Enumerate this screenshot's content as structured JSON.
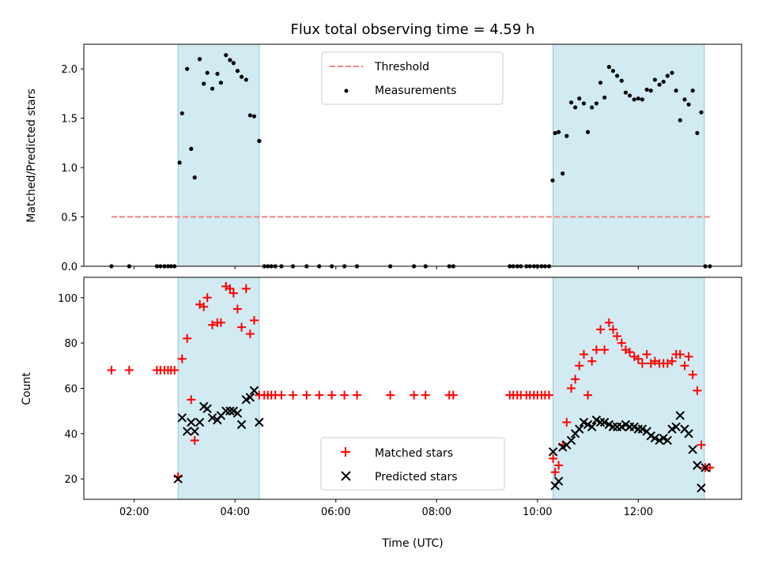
{
  "chart_data": {
    "type": "scatter",
    "title": "Flux total observing time = 4.59 h",
    "xlabel": "Time (UTC)",
    "xlim": [
      1.0,
      14.05
    ],
    "xticks": [
      2,
      4,
      6,
      8,
      10,
      12
    ],
    "xtick_labels": [
      "02:00",
      "04:00",
      "06:00",
      "08:00",
      "10:00",
      "12:00"
    ],
    "shaded_intervals": [
      [
        2.87,
        4.48
      ],
      [
        10.31,
        13.31
      ]
    ],
    "colors": {
      "shade": "#add8e6",
      "threshold": "#f08080",
      "matched": "#ff0000",
      "predicted": "#000000"
    },
    "panels": [
      {
        "ylabel": "Matched/Predicted stars",
        "ylim": [
          0,
          2.25
        ],
        "yticks": [
          0.0,
          0.5,
          1.0,
          1.5,
          2.0
        ],
        "ytick_labels": [
          "0.0",
          "0.5",
          "1.0",
          "1.5",
          "2.0"
        ],
        "legend": {
          "position": "upper center",
          "entries": [
            "Threshold",
            "Measurements"
          ]
        },
        "threshold": {
          "name": "Threshold",
          "y": 0.5,
          "x_range": [
            1.55,
            13.42
          ]
        },
        "series": [
          {
            "name": "Measurements",
            "marker": "dot",
            "x": [
              1.55,
              1.9,
              2.45,
              2.52,
              2.6,
              2.67,
              2.73,
              2.8,
              2.9,
              2.95,
              3.05,
              3.13,
              3.2,
              3.3,
              3.38,
              3.45,
              3.55,
              3.65,
              3.72,
              3.82,
              3.9,
              3.97,
              4.05,
              4.13,
              4.22,
              4.3,
              4.38,
              4.48,
              4.58,
              4.65,
              4.72,
              4.8,
              4.92,
              5.15,
              5.42,
              5.67,
              5.92,
              6.17,
              6.42,
              7.08,
              7.55,
              7.78,
              8.25,
              8.33,
              9.45,
              9.52,
              9.6,
              9.67,
              9.78,
              9.85,
              9.93,
              10.0,
              10.08,
              10.15,
              10.23,
              10.3,
              10.35,
              10.42,
              10.5,
              10.58,
              10.67,
              10.75,
              10.83,
              10.92,
              11.0,
              11.08,
              11.17,
              11.25,
              11.33,
              11.42,
              11.5,
              11.58,
              11.67,
              11.75,
              11.83,
              11.92,
              12.0,
              12.08,
              12.17,
              12.25,
              12.33,
              12.42,
              12.5,
              12.58,
              12.67,
              12.75,
              12.83,
              12.92,
              13.0,
              13.08,
              13.17,
              13.25,
              13.33,
              13.42
            ],
            "y": [
              0,
              0,
              0,
              0,
              0,
              0,
              0,
              0,
              1.05,
              1.55,
              2.0,
              1.19,
              0.9,
              2.1,
              1.85,
              1.96,
              1.8,
              1.95,
              1.86,
              2.14,
              2.09,
              2.06,
              1.98,
              1.92,
              1.89,
              1.53,
              1.52,
              1.27,
              0,
              0,
              0,
              0,
              0,
              0,
              0,
              0,
              0,
              0,
              0,
              0,
              0,
              0,
              0,
              0,
              0,
              0,
              0,
              0,
              0,
              0,
              0,
              0,
              0,
              0,
              0,
              0.87,
              1.35,
              1.36,
              0.94,
              1.32,
              1.66,
              1.61,
              1.7,
              1.65,
              1.36,
              1.61,
              1.65,
              1.86,
              1.71,
              2.02,
              1.98,
              1.93,
              1.88,
              1.76,
              1.73,
              1.69,
              1.7,
              1.69,
              1.79,
              1.78,
              1.89,
              1.84,
              1.87,
              1.93,
              1.96,
              1.78,
              1.48,
              1.69,
              1.64,
              1.78,
              1.35,
              1.56,
              0,
              0
            ]
          }
        ]
      },
      {
        "ylabel": "Count",
        "ylim": [
          11,
          109
        ],
        "yticks": [
          20,
          40,
          60,
          80,
          100
        ],
        "ytick_labels": [
          "20",
          "40",
          "60",
          "80",
          "100"
        ],
        "legend": {
          "position": "lower center",
          "entries": [
            "Matched stars",
            "Predicted stars"
          ]
        },
        "series": [
          {
            "name": "Matched stars",
            "marker": "plus",
            "x": [
              1.55,
              1.9,
              2.45,
              2.52,
              2.6,
              2.67,
              2.73,
              2.8,
              2.87,
              2.95,
              3.05,
              3.13,
              3.2,
              3.3,
              3.38,
              3.45,
              3.55,
              3.65,
              3.72,
              3.82,
              3.9,
              3.97,
              4.05,
              4.13,
              4.22,
              4.3,
              4.38,
              4.48,
              4.58,
              4.65,
              4.72,
              4.8,
              4.92,
              5.15,
              5.42,
              5.67,
              5.92,
              6.17,
              6.42,
              7.08,
              7.55,
              7.78,
              8.25,
              8.33,
              9.45,
              9.52,
              9.6,
              9.67,
              9.78,
              9.85,
              9.93,
              10.0,
              10.08,
              10.15,
              10.23,
              10.31,
              10.35,
              10.42,
              10.5,
              10.58,
              10.67,
              10.75,
              10.83,
              10.92,
              11.0,
              11.08,
              11.17,
              11.25,
              11.33,
              11.42,
              11.5,
              11.58,
              11.67,
              11.75,
              11.83,
              11.92,
              12.0,
              12.08,
              12.17,
              12.25,
              12.33,
              12.42,
              12.5,
              12.58,
              12.67,
              12.75,
              12.83,
              12.92,
              13.0,
              13.08,
              13.17,
              13.25,
              13.33,
              13.42
            ],
            "y": [
              68,
              68,
              68,
              68,
              68,
              68,
              68,
              68,
              21,
              73,
              82,
              55,
              37,
              97,
              96,
              100,
              88,
              89,
              89,
              105,
              104,
              102,
              95,
              87,
              104,
              84,
              90,
              57,
              57,
              57,
              57,
              57,
              57,
              57,
              57,
              57,
              57,
              57,
              57,
              57,
              57,
              57,
              57,
              57,
              57,
              57,
              57,
              57,
              57,
              57,
              57,
              57,
              57,
              57,
              57,
              29,
              23,
              26,
              35,
              45,
              60,
              64,
              70,
              75,
              57,
              72,
              77,
              86,
              77,
              89,
              86,
              83,
              80,
              77,
              76,
              74,
              73,
              71,
              75,
              71,
              72,
              71,
              71,
              71,
              72,
              75,
              75,
              70,
              74,
              66,
              59,
              35,
              25,
              25
            ]
          },
          {
            "name": "Predicted stars",
            "marker": "x",
            "x": [
              2.87,
              2.95,
              3.05,
              3.13,
              3.2,
              3.3,
              3.38,
              3.45,
              3.55,
              3.65,
              3.72,
              3.82,
              3.9,
              3.97,
              4.05,
              4.13,
              4.22,
              4.3,
              4.38,
              4.48,
              10.31,
              10.35,
              10.42,
              10.5,
              10.58,
              10.67,
              10.75,
              10.83,
              10.92,
              11.0,
              11.08,
              11.17,
              11.25,
              11.33,
              11.42,
              11.5,
              11.58,
              11.67,
              11.75,
              11.83,
              11.92,
              12.0,
              12.08,
              12.17,
              12.25,
              12.33,
              12.42,
              12.5,
              12.58,
              12.67,
              12.75,
              12.83,
              12.92,
              13.0,
              13.08,
              13.17,
              13.25,
              13.33
            ],
            "y": [
              20,
              47,
              41,
              45,
              41,
              45,
              52,
              51,
              47,
              46,
              48,
              50,
              50,
              50,
              49,
              44,
              55,
              56,
              59,
              45,
              32,
              17,
              19,
              34,
              35,
              37,
              40,
              42,
              45,
              44,
              43,
              46,
              45,
              45,
              44,
              43,
              43,
              43,
              44,
              43,
              43,
              42,
              42,
              41,
              39,
              38,
              37,
              38,
              37,
              42,
              43,
              48,
              42,
              40,
              33,
              26,
              16,
              25
            ]
          }
        ]
      }
    ]
  }
}
